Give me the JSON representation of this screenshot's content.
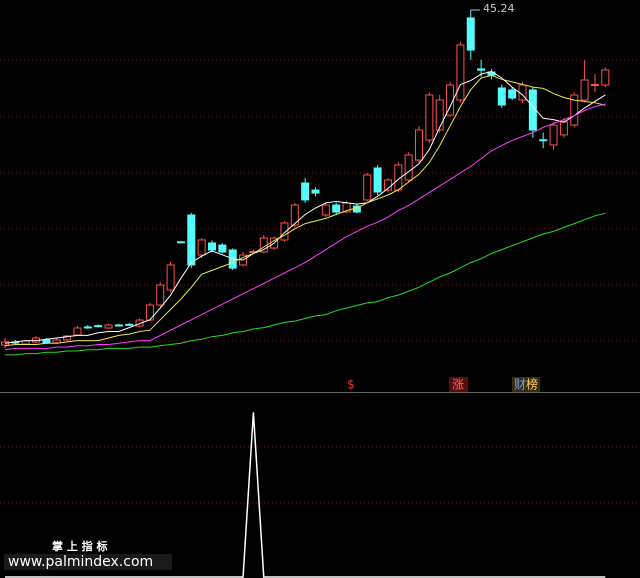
{
  "chart_data": {
    "type": "candlestick",
    "ylim": [
      16,
      46
    ],
    "up_color": "#ff4f4f",
    "down_color": "#54fcfc",
    "ohlc": [
      [
        19.46,
        19.69,
        20.0,
        19.23
      ],
      [
        19.69,
        19.69,
        19.85,
        19.54
      ],
      [
        19.54,
        19.77,
        19.85,
        19.46
      ],
      [
        19.69,
        20.0,
        20.15,
        19.62
      ],
      [
        19.85,
        19.62,
        20.0,
        19.54
      ],
      [
        19.62,
        19.85,
        20.0,
        19.54
      ],
      [
        19.85,
        20.15,
        20.23,
        19.77
      ],
      [
        20.23,
        20.77,
        20.92,
        20.15
      ],
      [
        20.85,
        20.8,
        21.0,
        20.7
      ],
      [
        20.95,
        20.9,
        21.05,
        20.8
      ],
      [
        20.77,
        21.0,
        21.1,
        20.7
      ],
      [
        21.0,
        20.95,
        21.1,
        20.9
      ],
      [
        21.05,
        21.0,
        21.15,
        20.95
      ],
      [
        20.92,
        21.38,
        21.5,
        20.85
      ],
      [
        21.38,
        22.54,
        22.7,
        21.3
      ],
      [
        22.54,
        24.08,
        24.3,
        22.4
      ],
      [
        23.69,
        25.62,
        25.85,
        23.5
      ],
      [
        27.4,
        27.35,
        27.45,
        27.3
      ],
      [
        29.46,
        25.62,
        29.62,
        25.38
      ],
      [
        26.38,
        27.54,
        27.69,
        26.15
      ],
      [
        27.31,
        26.77,
        27.5,
        26.6
      ],
      [
        27.15,
        26.62,
        27.3,
        26.5
      ],
      [
        26.77,
        25.38,
        26.9,
        25.23
      ],
      [
        25.62,
        26.38,
        26.62,
        25.5
      ],
      [
        26.6,
        26.65,
        26.8,
        26.5
      ],
      [
        26.62,
        27.69,
        27.92,
        26.5
      ],
      [
        26.92,
        27.69,
        27.8,
        26.8
      ],
      [
        27.54,
        28.85,
        29.0,
        27.4
      ],
      [
        28.69,
        30.23,
        30.4,
        28.5
      ],
      [
        31.92,
        30.62,
        32.31,
        30.38
      ],
      [
        31.38,
        31.15,
        31.6,
        30.9
      ],
      [
        29.46,
        30.23,
        30.4,
        29.3
      ],
      [
        30.23,
        29.69,
        30.4,
        29.5
      ],
      [
        29.69,
        30.38,
        30.55,
        29.6
      ],
      [
        30.15,
        29.69,
        30.3,
        29.6
      ],
      [
        30.62,
        32.54,
        32.7,
        30.5
      ],
      [
        33.08,
        31.23,
        33.3,
        31.0
      ],
      [
        31.38,
        32.15,
        32.3,
        31.2
      ],
      [
        31.38,
        33.31,
        33.5,
        31.2
      ],
      [
        32.15,
        34.08,
        34.3,
        32.0
      ],
      [
        33.69,
        36.0,
        36.3,
        33.5
      ],
      [
        35.23,
        38.69,
        38.9,
        35.0
      ],
      [
        36.0,
        38.31,
        38.7,
        35.8
      ],
      [
        37.15,
        39.46,
        39.7,
        37.0
      ],
      [
        38.31,
        42.54,
        42.8,
        38.1
      ],
      [
        44.62,
        42.15,
        45.24,
        41.4
      ],
      [
        40.7,
        40.6,
        41.4,
        40.1
      ],
      [
        40.46,
        40.23,
        40.7,
        39.9
      ],
      [
        39.23,
        37.92,
        39.5,
        37.7
      ],
      [
        39.08,
        38.46,
        39.3,
        38.3
      ],
      [
        38.31,
        39.46,
        39.7,
        38.1
      ],
      [
        39.08,
        36.0,
        39.3,
        35.4
      ],
      [
        35.25,
        35.2,
        35.8,
        34.6
      ],
      [
        34.85,
        36.38,
        36.6,
        34.5
      ],
      [
        35.62,
        36.62,
        36.9,
        35.4
      ],
      [
        36.38,
        38.69,
        38.9,
        36.2
      ],
      [
        38.31,
        39.85,
        41.38,
        38.1
      ],
      [
        39.45,
        39.5,
        40.3,
        38.9
      ],
      [
        39.46,
        40.62,
        40.8,
        39.3
      ]
    ],
    "ma_lines": [
      {
        "color": "#ffffff",
        "values": [
          19.6,
          19.7,
          19.8,
          19.8,
          19.9,
          20.0,
          20.1,
          20.2,
          20.2,
          20.4,
          20.5,
          20.5,
          20.8,
          21.1,
          21.4,
          22.3,
          23.3,
          24.6,
          25.8,
          26.3,
          26.7,
          26.4,
          26.1,
          26.0,
          26.5,
          26.8,
          27.3,
          28.1,
          28.8,
          29.5,
          30.0,
          30.4,
          30.5,
          30.4,
          30.3,
          30.4,
          30.9,
          31.5,
          32.2,
          32.8,
          33.4,
          34.5,
          36.2,
          37.8,
          39.5,
          39.8,
          40.3,
          40.5,
          40.0,
          39.3,
          38.7,
          37.8,
          36.9,
          36.8,
          36.6,
          37.1,
          37.7,
          38.2,
          38.7
        ]
      },
      {
        "color": "#e8e84a",
        "values": [
          19.4,
          19.5,
          19.5,
          19.5,
          19.6,
          19.6,
          19.7,
          19.8,
          19.8,
          19.8,
          20.0,
          20.2,
          20.3,
          20.5,
          20.6,
          21.4,
          22.2,
          23.0,
          23.9,
          24.9,
          25.2,
          25.5,
          25.8,
          26.2,
          26.5,
          27.0,
          27.5,
          27.9,
          28.4,
          28.8,
          29.0,
          29.2,
          29.5,
          29.8,
          30.0,
          30.4,
          30.7,
          31.0,
          31.4,
          32.0,
          32.6,
          33.5,
          34.8,
          36.3,
          37.8,
          39.1,
          40.0,
          40.2,
          39.9,
          39.7,
          39.5,
          39.3,
          39.2,
          38.8,
          38.5,
          38.3,
          38.2,
          38.1,
          37.9
        ]
      },
      {
        "color": "#ff3cff",
        "values": [
          19.1,
          19.2,
          19.2,
          19.2,
          19.2,
          19.3,
          19.3,
          19.4,
          19.4,
          19.5,
          19.5,
          19.6,
          19.7,
          19.8,
          19.8,
          20.2,
          20.6,
          21.0,
          21.4,
          21.8,
          22.2,
          22.6,
          23.0,
          23.4,
          23.8,
          24.2,
          24.6,
          25.0,
          25.4,
          25.8,
          26.3,
          26.8,
          27.3,
          27.8,
          28.2,
          28.6,
          28.9,
          29.3,
          29.8,
          30.2,
          30.7,
          31.2,
          31.7,
          32.2,
          32.7,
          33.2,
          33.8,
          34.4,
          34.8,
          35.2,
          35.5,
          35.8,
          36.2,
          36.5,
          36.8,
          37.1,
          37.5,
          37.8,
          38.0
        ]
      },
      {
        "color": "#20e020",
        "values": [
          18.7,
          18.7,
          18.8,
          18.8,
          18.9,
          18.9,
          19.0,
          19.0,
          19.1,
          19.1,
          19.2,
          19.2,
          19.2,
          19.3,
          19.3,
          19.4,
          19.5,
          19.6,
          19.8,
          19.9,
          20.1,
          20.2,
          20.4,
          20.5,
          20.7,
          20.8,
          21.0,
          21.2,
          21.3,
          21.5,
          21.7,
          21.8,
          22.1,
          22.3,
          22.5,
          22.7,
          22.8,
          23.1,
          23.3,
          23.6,
          23.9,
          24.3,
          24.7,
          25.0,
          25.4,
          25.8,
          26.1,
          26.5,
          26.8,
          27.1,
          27.4,
          27.7,
          28.0,
          28.2,
          28.5,
          28.8,
          29.1,
          29.4,
          29.6
        ]
      }
    ],
    "markers": [
      "$",
      "涨",
      "财",
      "榜"
    ],
    "indicator": {
      "color": "#ffffff",
      "ylim": [
        0,
        1.1
      ],
      "values": [
        0,
        0,
        0,
        0,
        0,
        0,
        0,
        0,
        0,
        0,
        0,
        0,
        0,
        0,
        0,
        0,
        0,
        0,
        0,
        0,
        0,
        0,
        0,
        0,
        1,
        0,
        0,
        0,
        0,
        0,
        0,
        0,
        0,
        0,
        0,
        0,
        0,
        0,
        0,
        0,
        0,
        0,
        0,
        0,
        0,
        0,
        0,
        0,
        0,
        0,
        0,
        0,
        0,
        0,
        0,
        0,
        0,
        0,
        0
      ]
    },
    "watermark": {
      "title": "掌 上 指 标",
      "url": "www.palmindex.com"
    }
  }
}
